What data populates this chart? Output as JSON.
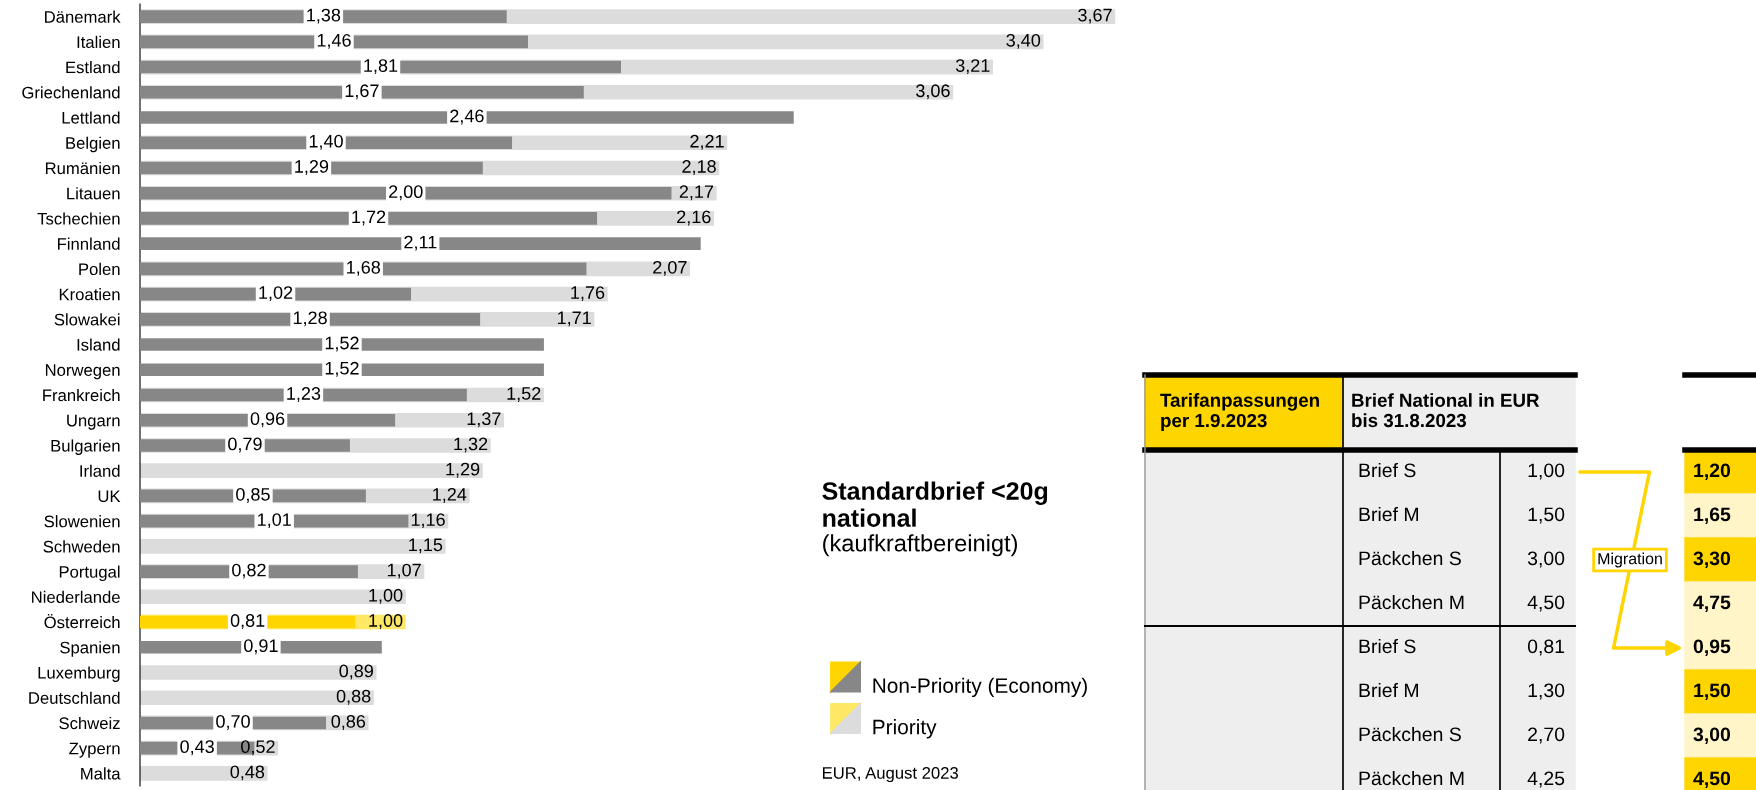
{
  "chart_data": [
    {
      "type": "bar",
      "orientation": "horizontal",
      "title": "Standardbrief <20g\nnational",
      "subtitle": "(kaufkraftbereinigt)",
      "categories": [
        "Dänemark",
        "Italien",
        "Estland",
        "Griechenland",
        "Lettland",
        "Belgien",
        "Rumänien",
        "Litauen",
        "Tschechien",
        "Finnland",
        "Polen",
        "Kroatien",
        "Slowakei",
        "Island",
        "Norwegen",
        "Frankreich",
        "Ungarn",
        "Bulgarien",
        "Irland",
        "UK",
        "Slowenien",
        "Schweden",
        "Portugal",
        "Niederlande",
        "Österreich",
        "Spanien",
        "Luxemburg",
        "Deutschland",
        "Schweiz",
        "Zypern",
        "Malta"
      ],
      "series": [
        {
          "name": "Priority",
          "color": "#dcdcdc",
          "colors": [
            "#dcdcdc",
            "#dcdcdc",
            "#dcdcdc",
            "#dcdcdc",
            "#dcdcdc",
            "#dcdcdc",
            "#dcdcdc",
            "#dcdcdc",
            "#dcdcdc",
            "#dcdcdc",
            "#dcdcdc",
            "#dcdcdc",
            "#dcdcdc",
            "#dcdcdc",
            "#dcdcdc",
            "#dcdcdc",
            "#dcdcdc",
            "#dcdcdc",
            "#dcdcdc",
            "#dcdcdc",
            "#dcdcdc",
            "#dcdcdc",
            "#dcdcdc",
            "#dcdcdc",
            "#ffe866",
            "#dcdcdc",
            "#dcdcdc",
            "#dcdcdc",
            "#dcdcdc",
            "#dcdcdc",
            "#dcdcdc"
          ],
          "values": [
            3.67,
            3.4,
            3.21,
            3.06,
            null,
            2.21,
            2.18,
            2.17,
            2.16,
            null,
            2.07,
            1.76,
            1.71,
            null,
            null,
            1.52,
            1.37,
            1.32,
            1.29,
            1.24,
            1.16,
            1.15,
            1.07,
            1.0,
            1.0,
            null,
            0.89,
            0.88,
            0.86,
            0.52,
            0.48
          ],
          "value_labels": [
            "3,67",
            "3,40",
            "3,21",
            "3,06",
            null,
            "2,21",
            "2,18",
            "2,17",
            "2,16",
            null,
            "2,07",
            "1,76",
            "1,71",
            null,
            null,
            "1,52",
            "1,37",
            "1,32",
            "1,29",
            "1,24",
            "1,16",
            "1,15",
            "1,07",
            "1,00",
            "1,00",
            null,
            "0,89",
            "0,88",
            "0,86",
            "0,52",
            "0,48"
          ]
        },
        {
          "name": "Non-Priority (Economy)",
          "color": "#878787",
          "colors": [
            "#878787",
            "#878787",
            "#878787",
            "#878787",
            "#878787",
            "#878787",
            "#878787",
            "#878787",
            "#878787",
            "#878787",
            "#878787",
            "#878787",
            "#878787",
            "#878787",
            "#878787",
            "#878787",
            "#878787",
            "#878787",
            "#878787",
            "#878787",
            "#878787",
            "#878787",
            "#878787",
            "#878787",
            "#ffd500",
            "#878787",
            "#878787",
            "#878787",
            "#878787",
            "#878787",
            "#878787"
          ],
          "values": [
            1.38,
            1.46,
            1.81,
            1.67,
            2.46,
            1.4,
            1.29,
            2.0,
            1.72,
            2.11,
            1.68,
            1.02,
            1.28,
            1.52,
            1.52,
            1.23,
            0.96,
            0.79,
            null,
            0.85,
            1.01,
            null,
            0.82,
            null,
            0.81,
            0.91,
            null,
            null,
            0.7,
            0.43,
            null
          ],
          "value_labels": [
            "1,38",
            "1,46",
            "1,81",
            "1,67",
            "2,46",
            "1,40",
            "1,29",
            "2,00",
            "1,72",
            "2,11",
            "1,68",
            "1,02",
            "1,28",
            "1,52",
            "1,52",
            "1,23",
            "0,96",
            "0,79",
            null,
            "0,85",
            "1,01",
            null,
            "0,82",
            null,
            "0,81",
            "0,91",
            null,
            null,
            "0,70",
            "0,43",
            null
          ]
        }
      ],
      "tick_labels": "y",
      "legend": "bottom",
      "grid": false,
      "annotations": [
        "EUR, August 2023"
      ]
    },
    {
      "type": "other",
      "title": "Tarifanpassungen\nper 1.9.2023",
      "xlabel": "Brief National in EUR\nbis 31.8.2023",
      "categories": [
        "Brief S",
        "Brief M",
        "Päckchen S",
        "Päckchen M",
        "Brief S",
        "Brief M",
        "Päckchen S",
        "Päckchen M"
      ],
      "series": [
        {
          "color": "#eeeeee",
          "values": [
            1.0,
            1.5,
            3.0,
            4.5,
            0.81,
            1.3,
            2.7,
            4.25
          ],
          "value_labels": [
            "1,00",
            "1,50",
            "3,00",
            "4,50",
            "0,81",
            "1,30",
            "2,70",
            "4,25"
          ]
        },
        {
          "colors": [
            "#ffd500",
            "#fff5c8",
            "#ffd500",
            "#fff5c8",
            "#fff5c8",
            "#ffd500",
            "#fff5c8",
            "#ffd500"
          ],
          "values": [
            1.2,
            1.65,
            3.3,
            4.75,
            0.95,
            1.5,
            3.0,
            4.5
          ],
          "value_labels": [
            "1,20",
            "1,65",
            "3,30",
            "4,75",
            "0,95",
            "1,50",
            "3,00",
            "4,50"
          ]
        }
      ],
      "annotations": [
        "Migration"
      ]
    }
  ]
}
